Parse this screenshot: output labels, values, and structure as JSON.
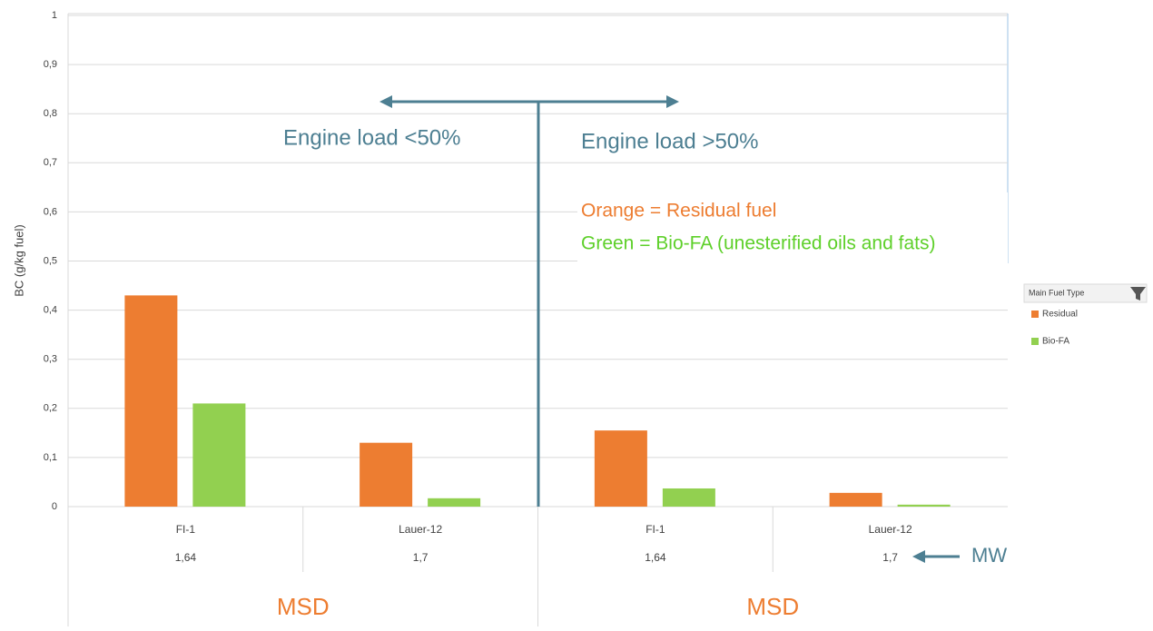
{
  "chart_data": {
    "type": "bar",
    "y_label": "BC (g/kg fuel)",
    "categories": [
      "FI-1",
      "Lauer-12",
      "FI-1",
      "Lauer-12"
    ],
    "category_sublabels": [
      "1,64",
      "1,7",
      "1,64",
      "1,7"
    ],
    "groups": [
      "MSD",
      "MSD"
    ],
    "series": [
      {
        "name": "Residual",
        "color": "#ed7d31",
        "values": [
          0.43,
          0.13,
          0.155,
          0.028
        ]
      },
      {
        "name": "Bio-FA",
        "color": "#92d050",
        "values": [
          0.21,
          0.017,
          0.037,
          0.004
        ]
      }
    ],
    "ylim": [
      0,
      1
    ],
    "yticks": [
      0,
      {
        "value": 0.1,
        "label": "0,1"
      },
      {
        "value": 0.2,
        "label": "0,2"
      },
      {
        "value": 0.3,
        "label": "0,3"
      },
      {
        "value": 0.4,
        "label": "0,4"
      },
      {
        "value": 0.5,
        "label": "0,5"
      },
      {
        "value": 0.6,
        "label": "0,6"
      },
      {
        "value": 0.7,
        "label": "0,7"
      },
      {
        "value": 0.8,
        "label": "0,8"
      },
      {
        "value": 0.9,
        "label": "0,9"
      },
      1
    ],
    "grid": true,
    "legend_title": "Main Fuel Type",
    "legend_position": "right",
    "annotations": {
      "left_load": "Engine load <50%",
      "right_load": "Engine load >50%",
      "orange_key": "Orange = Residual fuel",
      "green_key": "Green = Bio-FA (unesterified oils and fats)",
      "mw": "MW"
    }
  }
}
